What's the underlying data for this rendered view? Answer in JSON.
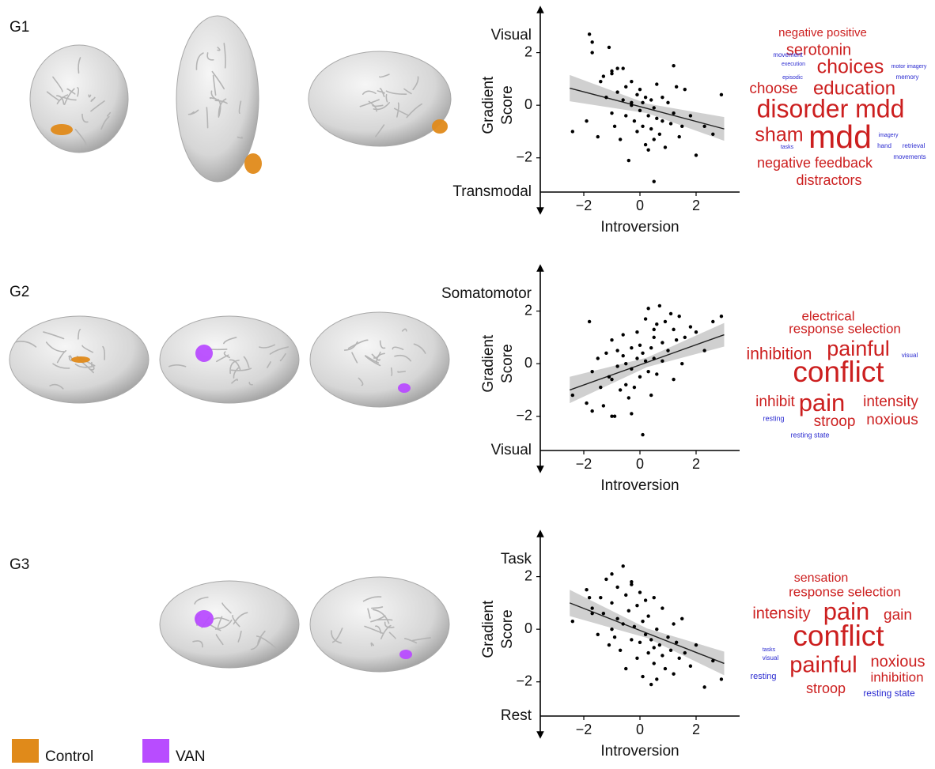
{
  "chart_data": [
    {
      "type": "scatter",
      "panel_label": "G1",
      "xlabel": "Introversion",
      "ylabel_lines": [
        "Gradient",
        "Score"
      ],
      "y_end_labels": {
        "top": "Visual",
        "bottom": "Transmodal"
      },
      "xlim": [
        -3.55,
        3.55
      ],
      "ylim": [
        -3.3,
        3.7
      ],
      "xticks": [
        {
          "value": -2,
          "label": "−2"
        },
        0,
        2
      ],
      "yticks": [
        {
          "value": -2,
          "label": "−2"
        },
        0,
        2
      ],
      "color": "#000000",
      "fit_color": "#222222",
      "band_color": "#c8c8c8",
      "x": [
        -2.4,
        -1.9,
        -1.7,
        -1.5,
        -1.4,
        -1.3,
        -1.2,
        -1.1,
        -1.0,
        -1.0,
        -0.9,
        -0.8,
        -0.8,
        -0.7,
        -0.6,
        -0.6,
        -0.5,
        -0.5,
        -0.4,
        -0.3,
        -0.3,
        -0.2,
        -0.1,
        -0.1,
        0.0,
        0.0,
        0.1,
        0.1,
        0.2,
        0.2,
        0.3,
        0.3,
        0.4,
        0.4,
        0.5,
        0.5,
        0.6,
        0.6,
        0.7,
        0.8,
        0.8,
        0.9,
        1.0,
        1.1,
        1.2,
        1.2,
        1.3,
        1.4,
        1.5,
        1.6,
        1.8,
        2.0,
        2.3,
        2.6,
        2.9,
        -1.8,
        -1.7,
        -1.0,
        0.5,
        -0.3
      ],
      "y": [
        -1.0,
        -0.6,
        2.0,
        -1.2,
        0.9,
        1.1,
        0.3,
        2.2,
        -0.3,
        1.3,
        -0.8,
        0.5,
        1.4,
        -1.3,
        0.2,
        1.4,
        -0.4,
        0.7,
        -2.1,
        0.1,
        0.9,
        -0.6,
        0.4,
        -1.0,
        -0.2,
        0.6,
        -0.8,
        0.1,
        -1.5,
        0.3,
        -0.4,
        -1.7,
        0.2,
        -0.9,
        -2.9,
        -0.1,
        -0.5,
        0.8,
        -1.1,
        0.3,
        -0.6,
        -1.6,
        0.1,
        -0.7,
        1.5,
        -0.3,
        0.7,
        -1.2,
        -0.8,
        0.6,
        -0.4,
        -1.9,
        -0.8,
        -1.1,
        0.4,
        2.7,
        2.4,
        1.2,
        -1.3,
        0.0
      ],
      "fit": {
        "x": [
          -2.5,
          0.25,
          3
        ],
        "y": [
          0.65,
          -0.12,
          -0.9
        ],
        "lower": [
          0.15,
          -0.3,
          -1.35
        ],
        "upper": [
          1.15,
          0.06,
          -0.45
        ]
      },
      "wordcloud": [
        {
          "text": "negative positive",
          "color": "#cc1f1f"
        },
        {
          "text": "serotonin",
          "color": "#cc1f1f"
        },
        {
          "text": "choices",
          "color": "#cc1f1f"
        },
        {
          "text": "choose",
          "color": "#cc1f1f"
        },
        {
          "text": "education",
          "color": "#cc1f1f"
        },
        {
          "text": "disorder mdd",
          "color": "#cc1f1f"
        },
        {
          "text": "sham",
          "color": "#cc1f1f"
        },
        {
          "text": "mdd",
          "color": "#cc1f1f"
        },
        {
          "text": "negative feedback",
          "color": "#cc1f1f"
        },
        {
          "text": "distractors",
          "color": "#cc1f1f"
        },
        {
          "text": "movement",
          "color": "#2a2ad0"
        },
        {
          "text": "execution",
          "color": "#2a2ad0"
        },
        {
          "text": "episodic",
          "color": "#2a2ad0"
        },
        {
          "text": "motor imagery",
          "color": "#2a2ad0"
        },
        {
          "text": "memory",
          "color": "#2a2ad0"
        },
        {
          "text": "imagery",
          "color": "#2a2ad0"
        },
        {
          "text": "tasks",
          "color": "#2a2ad0"
        },
        {
          "text": "hand",
          "color": "#2a2ad0"
        },
        {
          "text": "retrieval",
          "color": "#2a2ad0"
        },
        {
          "text": "movements",
          "color": "#2a2ad0"
        }
      ]
    },
    {
      "type": "scatter",
      "panel_label": "G2",
      "xlabel": "Introversion",
      "ylabel_lines": [
        "Gradient",
        "Score"
      ],
      "y_end_labels": {
        "top": "Somatomotor",
        "bottom": "Visual"
      },
      "xlim": [
        -3.55,
        3.55
      ],
      "ylim": [
        -3.3,
        3.7
      ],
      "xticks": [
        {
          "value": -2,
          "label": "−2"
        },
        0,
        2
      ],
      "yticks": [
        {
          "value": -2,
          "label": "−2"
        },
        0,
        2
      ],
      "color": "#000000",
      "fit_color": "#222222",
      "band_color": "#c8c8c8",
      "x": [
        -2.4,
        -1.9,
        -1.7,
        -1.5,
        -1.4,
        -1.3,
        -1.2,
        -1.1,
        -1.0,
        -1.0,
        -0.9,
        -0.8,
        -0.8,
        -0.7,
        -0.6,
        -0.6,
        -0.5,
        -0.5,
        -0.4,
        -0.3,
        -0.3,
        -0.2,
        -0.1,
        -0.1,
        0.0,
        0.0,
        0.1,
        0.1,
        0.2,
        0.2,
        0.3,
        0.3,
        0.4,
        0.4,
        0.5,
        0.5,
        0.6,
        0.6,
        0.7,
        0.8,
        0.8,
        0.9,
        1.0,
        1.1,
        1.2,
        1.2,
        1.3,
        1.4,
        1.5,
        1.6,
        1.8,
        2.0,
        2.3,
        2.6,
        2.9,
        -1.8,
        -1.7,
        -1.0,
        0.5,
        -0.3
      ],
      "y": [
        -1.2,
        -1.5,
        -0.3,
        0.2,
        -0.9,
        -1.6,
        0.4,
        -0.5,
        -0.6,
        0.9,
        -2.0,
        0.5,
        -0.1,
        -1.0,
        0.3,
        1.1,
        -0.8,
        0.0,
        -1.3,
        -0.2,
        0.6,
        -0.9,
        0.2,
        1.2,
        -0.5,
        0.7,
        -2.7,
        0.4,
        1.7,
        0.1,
        -0.3,
        2.1,
        0.6,
        -1.2,
        1.0,
        0.2,
        1.5,
        -0.4,
        2.2,
        0.8,
        0.1,
        1.6,
        0.5,
        1.9,
        1.3,
        -0.6,
        0.9,
        1.8,
        0.0,
        1.0,
        1.4,
        1.2,
        0.5,
        1.6,
        1.8,
        1.6,
        -1.8,
        -2.0,
        1.3,
        -1.9
      ],
      "fit": {
        "x": [
          -2.5,
          0.25,
          3
        ],
        "y": [
          -1.0,
          0.05,
          1.1
        ],
        "lower": [
          -1.5,
          -0.13,
          0.65
        ],
        "upper": [
          -0.5,
          0.23,
          1.55
        ]
      },
      "wordcloud": [
        {
          "text": "electrical",
          "color": "#cc1f1f"
        },
        {
          "text": "response selection",
          "color": "#cc1f1f"
        },
        {
          "text": "inhibition",
          "color": "#cc1f1f"
        },
        {
          "text": "painful",
          "color": "#cc1f1f"
        },
        {
          "text": "conflict",
          "color": "#cc1f1f"
        },
        {
          "text": "inhibit",
          "color": "#cc1f1f"
        },
        {
          "text": "pain",
          "color": "#cc1f1f"
        },
        {
          "text": "intensity",
          "color": "#cc1f1f"
        },
        {
          "text": "stroop",
          "color": "#cc1f1f"
        },
        {
          "text": "noxious",
          "color": "#cc1f1f"
        },
        {
          "text": "visual",
          "color": "#2a2ad0"
        },
        {
          "text": "resting",
          "color": "#2a2ad0"
        },
        {
          "text": "resting state",
          "color": "#2a2ad0"
        }
      ]
    },
    {
      "type": "scatter",
      "panel_label": "G3",
      "xlabel": "Introversion",
      "ylabel_lines": [
        "Gradient",
        "Score"
      ],
      "y_end_labels": {
        "top": "Task",
        "bottom": "Rest"
      },
      "xlim": [
        -3.55,
        3.55
      ],
      "ylim": [
        -3.3,
        3.7
      ],
      "xticks": [
        {
          "value": -2,
          "label": "−2"
        },
        0,
        2
      ],
      "yticks": [
        {
          "value": -2,
          "label": "−2"
        },
        0,
        2
      ],
      "color": "#000000",
      "fit_color": "#222222",
      "band_color": "#c8c8c8",
      "x": [
        -2.4,
        -1.9,
        -1.7,
        -1.5,
        -1.4,
        -1.3,
        -1.2,
        -1.1,
        -1.0,
        -1.0,
        -0.9,
        -0.8,
        -0.8,
        -0.7,
        -0.6,
        -0.6,
        -0.5,
        -0.5,
        -0.4,
        -0.3,
        -0.3,
        -0.2,
        -0.1,
        -0.1,
        0.0,
        0.0,
        0.1,
        0.1,
        0.2,
        0.2,
        0.3,
        0.3,
        0.4,
        0.4,
        0.5,
        0.5,
        0.6,
        0.6,
        0.7,
        0.8,
        0.8,
        0.9,
        1.0,
        1.1,
        1.2,
        1.2,
        1.3,
        1.4,
        1.5,
        1.6,
        1.8,
        2.0,
        2.3,
        2.6,
        2.9,
        -1.8,
        -1.7,
        -1.0,
        0.5,
        -0.3
      ],
      "y": [
        0.3,
        1.5,
        0.8,
        -0.2,
        1.2,
        0.6,
        1.9,
        -0.6,
        1.0,
        2.1,
        -0.3,
        1.6,
        0.4,
        -0.8,
        2.4,
        0.2,
        1.3,
        -1.5,
        0.7,
        -0.4,
        1.8,
        0.1,
        -1.1,
        0.9,
        -0.5,
        1.4,
        0.3,
        -1.8,
        -0.2,
        1.1,
        -0.9,
        0.5,
        -2.1,
        -0.4,
        1.2,
        -1.3,
        0.0,
        -1.9,
        -0.6,
        0.8,
        -1.0,
        -1.5,
        -0.3,
        -0.8,
        0.2,
        -1.7,
        -0.5,
        -1.1,
        0.4,
        -0.9,
        -1.4,
        -0.6,
        -2.2,
        -1.2,
        -1.9,
        1.2,
        0.6,
        0.0,
        -0.7,
        1.7
      ],
      "fit": {
        "x": [
          -2.5,
          0.25,
          3
        ],
        "y": [
          1.0,
          -0.15,
          -1.3
        ],
        "lower": [
          0.5,
          -0.33,
          -1.75
        ],
        "upper": [
          1.5,
          0.03,
          -0.85
        ]
      },
      "wordcloud": [
        {
          "text": "sensation",
          "color": "#cc1f1f"
        },
        {
          "text": "response selection",
          "color": "#cc1f1f"
        },
        {
          "text": "intensity",
          "color": "#cc1f1f"
        },
        {
          "text": "pain",
          "color": "#cc1f1f"
        },
        {
          "text": "gain",
          "color": "#cc1f1f"
        },
        {
          "text": "conflict",
          "color": "#cc1f1f"
        },
        {
          "text": "painful",
          "color": "#cc1f1f"
        },
        {
          "text": "noxious",
          "color": "#cc1f1f"
        },
        {
          "text": "inhibition",
          "color": "#cc1f1f"
        },
        {
          "text": "stroop",
          "color": "#cc1f1f"
        },
        {
          "text": "resting",
          "color": "#2a2ad0"
        },
        {
          "text": "resting state",
          "color": "#2a2ad0"
        },
        {
          "text": "visual",
          "color": "#2a2ad0"
        },
        {
          "text": "tasks",
          "color": "#2a2ad0"
        }
      ]
    }
  ],
  "legend": [
    {
      "label": "Control",
      "color": "#e08a1a"
    },
    {
      "label": "VAN",
      "color": "#b84cff"
    }
  ]
}
